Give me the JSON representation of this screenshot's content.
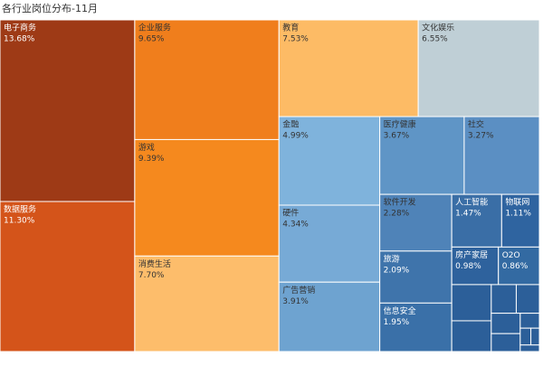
{
  "chart_data": {
    "type": "treemap",
    "title": "各行业岗位分布-11月",
    "categories": [
      "电子商务",
      "数据服务",
      "企业服务",
      "游戏",
      "消费生活",
      "教育",
      "文化娱乐",
      "金融",
      "硬件",
      "广告营销",
      "医疗健康",
      "社交",
      "软件开发",
      "旅游",
      "信息安全",
      "人工智能",
      "物联网",
      "房产家居",
      "O2O",
      null,
      null,
      null,
      null,
      null,
      null,
      null,
      null,
      null,
      null
    ],
    "values": [
      13.68,
      11.3,
      9.65,
      9.39,
      7.7,
      7.53,
      6.55,
      4.99,
      4.34,
      3.91,
      3.67,
      3.27,
      2.28,
      2.09,
      1.95,
      1.47,
      1.11,
      0.98,
      0.86,
      0.8,
      0.68,
      0.4,
      0.37,
      0.33,
      0.29,
      0.16,
      0.1,
      0.08,
      0.07
    ],
    "value_labels": [
      "13.68%",
      "11.30%",
      "9.65%",
      "9.39%",
      "7.70%",
      "7.53%",
      "6.55%",
      "4.99%",
      "4.34%",
      "3.91%",
      "3.67%",
      "3.27%",
      "2.28%",
      "2.09%",
      "1.95%",
      "1.47%",
      "1.11%",
      "0.98%",
      "0.86%",
      null,
      null,
      null,
      null,
      null,
      null,
      null,
      null,
      null,
      null
    ],
    "colors": [
      "#9e3a16",
      "#d4541a",
      "#f07e1c",
      "#f5891e",
      "#fdbd6b",
      "#fdbb65",
      "#bfcfd6",
      "#7fb3dc",
      "#77aad6",
      "#6ea3d0",
      "#5f95c6",
      "#5b8fc3",
      "#4f83b8",
      "#3f74ab",
      "#3a70a8",
      "#3a6ea6",
      "#2f64a0",
      "#2e629d",
      "#336aa2",
      "#2c5f99",
      "#2c5f99",
      "#2c5f99",
      "#2c5f99",
      "#2c5f99",
      "#2c5f99",
      "#2c5f99",
      "#2c5f99",
      "#2c5f99",
      "#2c5f99"
    ]
  }
}
